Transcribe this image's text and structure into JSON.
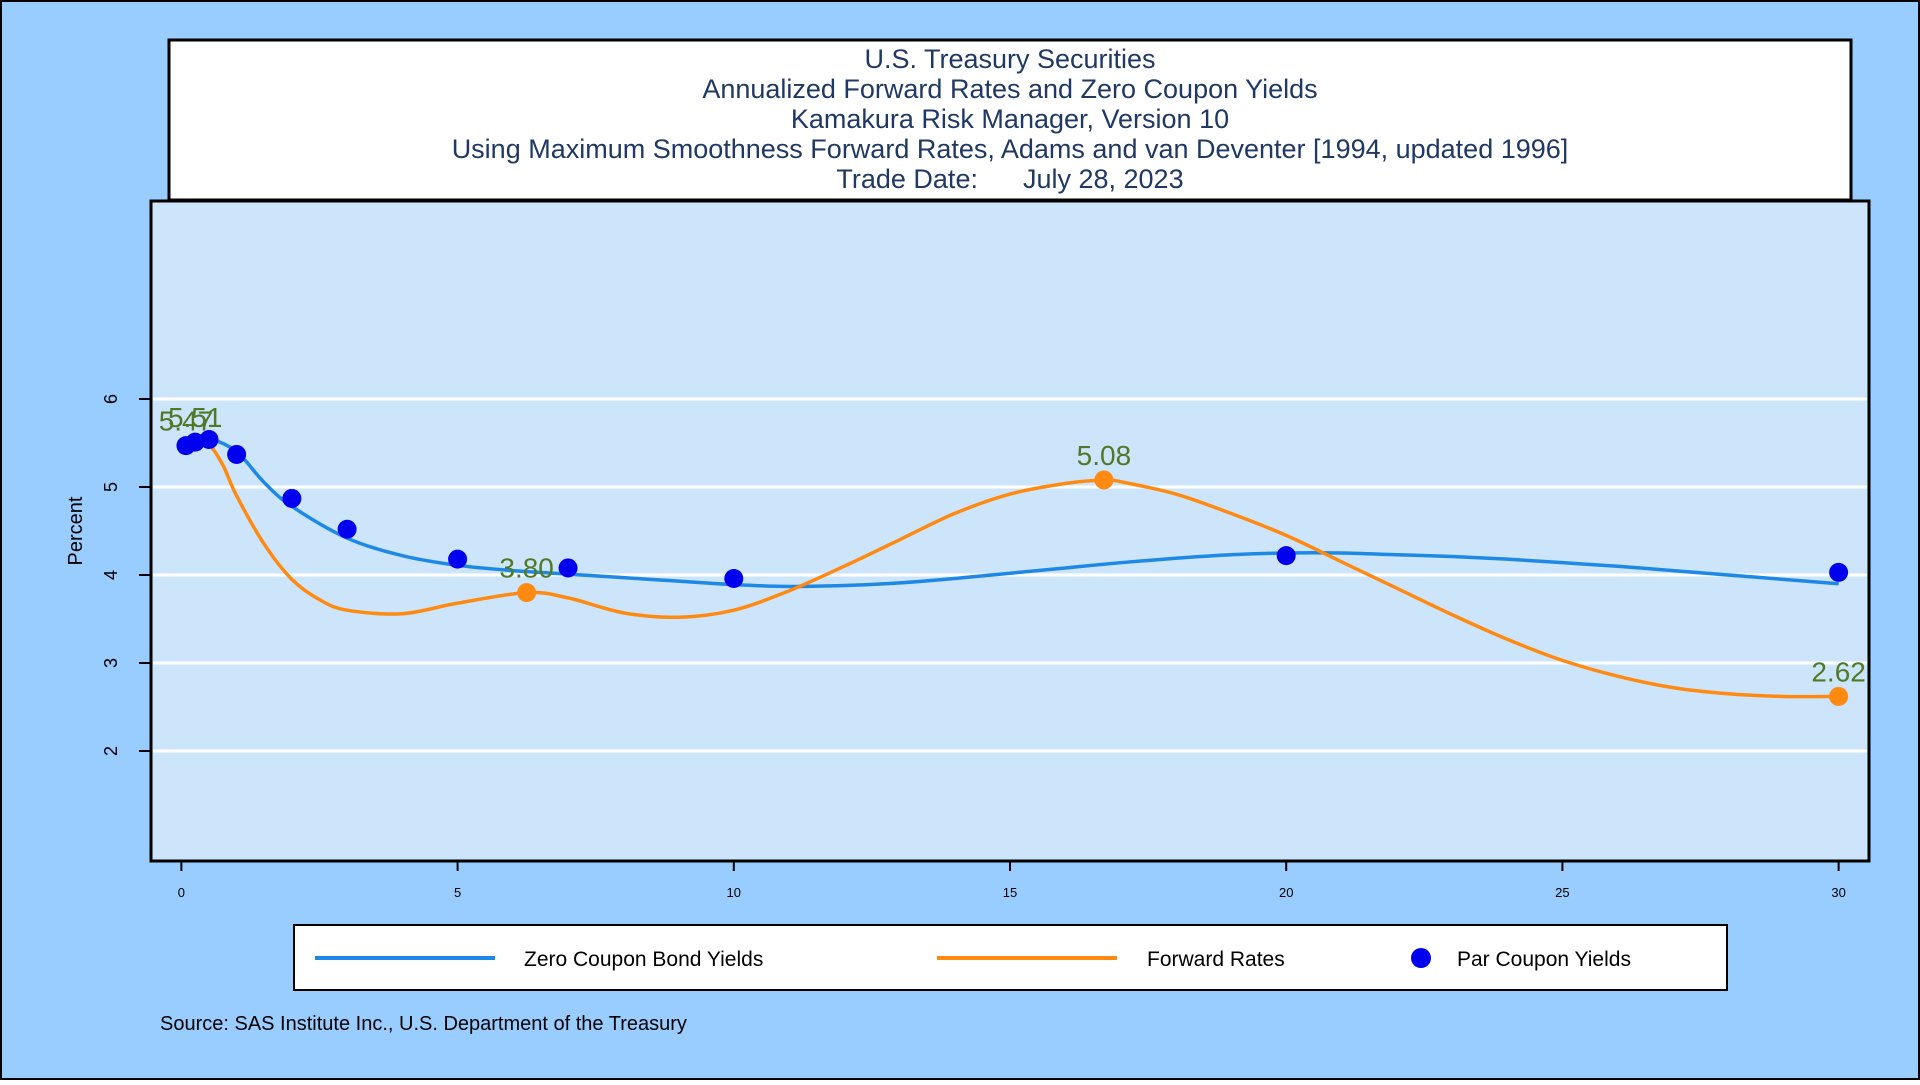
{
  "colors": {
    "outer_background": "#99CCFF",
    "plot_background": "#CCE5FA",
    "gridline": "#FFFFFF",
    "zero_coupon_line": "#1E88E5",
    "forward_line": "#FF8A12",
    "par_points": "#0000EE",
    "data_label": "#4E7A27",
    "frame": "#000000",
    "title_text": "#1F3864"
  },
  "chart_data": {
    "type": "line",
    "title": [
      "U.S. Treasury Securities",
      "Annualized Forward Rates and Zero Coupon Yields",
      "Kamakura Risk Manager, Version 10",
      "Using Maximum Smoothness Forward Rates, Adams and van Deventer [1994, updated 1996]",
      "Trade Date:      July 28, 2023"
    ],
    "ylabel": "Percent",
    "xlabel": "",
    "xlim": [
      -0.55,
      30.55
    ],
    "ylim": [
      0.75,
      8.25
    ],
    "xticks": [
      0,
      5,
      10,
      15,
      20,
      25,
      30
    ],
    "yticks": [
      2,
      3,
      4,
      5,
      6
    ],
    "grid": true,
    "legend_position": "bottom",
    "series": [
      {
        "name": "Zero Coupon Bond Yields",
        "kind": "line",
        "color": "#1E88E5",
        "x": [
          0.083,
          0.25,
          0.5,
          1,
          1.5,
          2,
          3,
          4,
          5,
          6,
          7,
          8,
          9,
          10,
          11,
          12,
          13,
          14,
          15,
          16,
          17,
          18,
          19,
          20,
          21,
          22,
          23,
          24,
          25,
          26,
          27,
          28,
          29,
          30
        ],
        "y": [
          5.47,
          5.52,
          5.55,
          5.4,
          5.05,
          4.78,
          4.42,
          4.22,
          4.11,
          4.05,
          4.01,
          3.97,
          3.93,
          3.89,
          3.87,
          3.88,
          3.91,
          3.96,
          4.02,
          4.08,
          4.14,
          4.19,
          4.23,
          4.25,
          4.25,
          4.23,
          4.21,
          4.18,
          4.14,
          4.1,
          4.05,
          4.0,
          3.95,
          3.9
        ]
      },
      {
        "name": "Forward Rates",
        "kind": "line",
        "color": "#FF8A12",
        "x": [
          0.083,
          0.25,
          0.5,
          0.75,
          1,
          1.5,
          2,
          2.5,
          3,
          4,
          5,
          6.25,
          7,
          8,
          9,
          10,
          11,
          12,
          13,
          14,
          15,
          16,
          16.7,
          17,
          18,
          19,
          20,
          21,
          22,
          23,
          24,
          25,
          26,
          27,
          28,
          29,
          30
        ],
        "y": [
          5.47,
          5.51,
          5.48,
          5.25,
          4.9,
          4.35,
          3.95,
          3.72,
          3.6,
          3.56,
          3.68,
          3.8,
          3.74,
          3.57,
          3.52,
          3.6,
          3.82,
          4.1,
          4.4,
          4.7,
          4.92,
          5.04,
          5.08,
          5.06,
          4.92,
          4.7,
          4.45,
          4.15,
          3.85,
          3.55,
          3.27,
          3.03,
          2.85,
          2.72,
          2.65,
          2.62,
          2.62
        ]
      },
      {
        "name": "Par Coupon Yields",
        "kind": "scatter",
        "color": "#0000EE",
        "x": [
          0.083,
          0.25,
          0.5,
          1,
          2,
          3,
          5,
          7,
          10,
          20,
          30
        ],
        "y": [
          5.47,
          5.51,
          5.54,
          5.37,
          4.87,
          4.52,
          4.18,
          4.08,
          3.96,
          4.22,
          4.03
        ]
      }
    ],
    "annotations": [
      {
        "x": 0.083,
        "y": 5.47,
        "text": "5.47"
      },
      {
        "x": 0.25,
        "y": 5.51,
        "text": "5.51"
      },
      {
        "x": 6.25,
        "y": 3.8,
        "text": "3.80"
      },
      {
        "x": 16.7,
        "y": 5.08,
        "text": "5.08"
      },
      {
        "x": 30,
        "y": 2.62,
        "text": "2.62"
      }
    ]
  },
  "legend": {
    "items": [
      "Zero Coupon Bond Yields",
      "Forward Rates",
      "Par Coupon Yields"
    ]
  },
  "source_note": "Source: SAS Institute Inc., U.S. Department of the Treasury"
}
